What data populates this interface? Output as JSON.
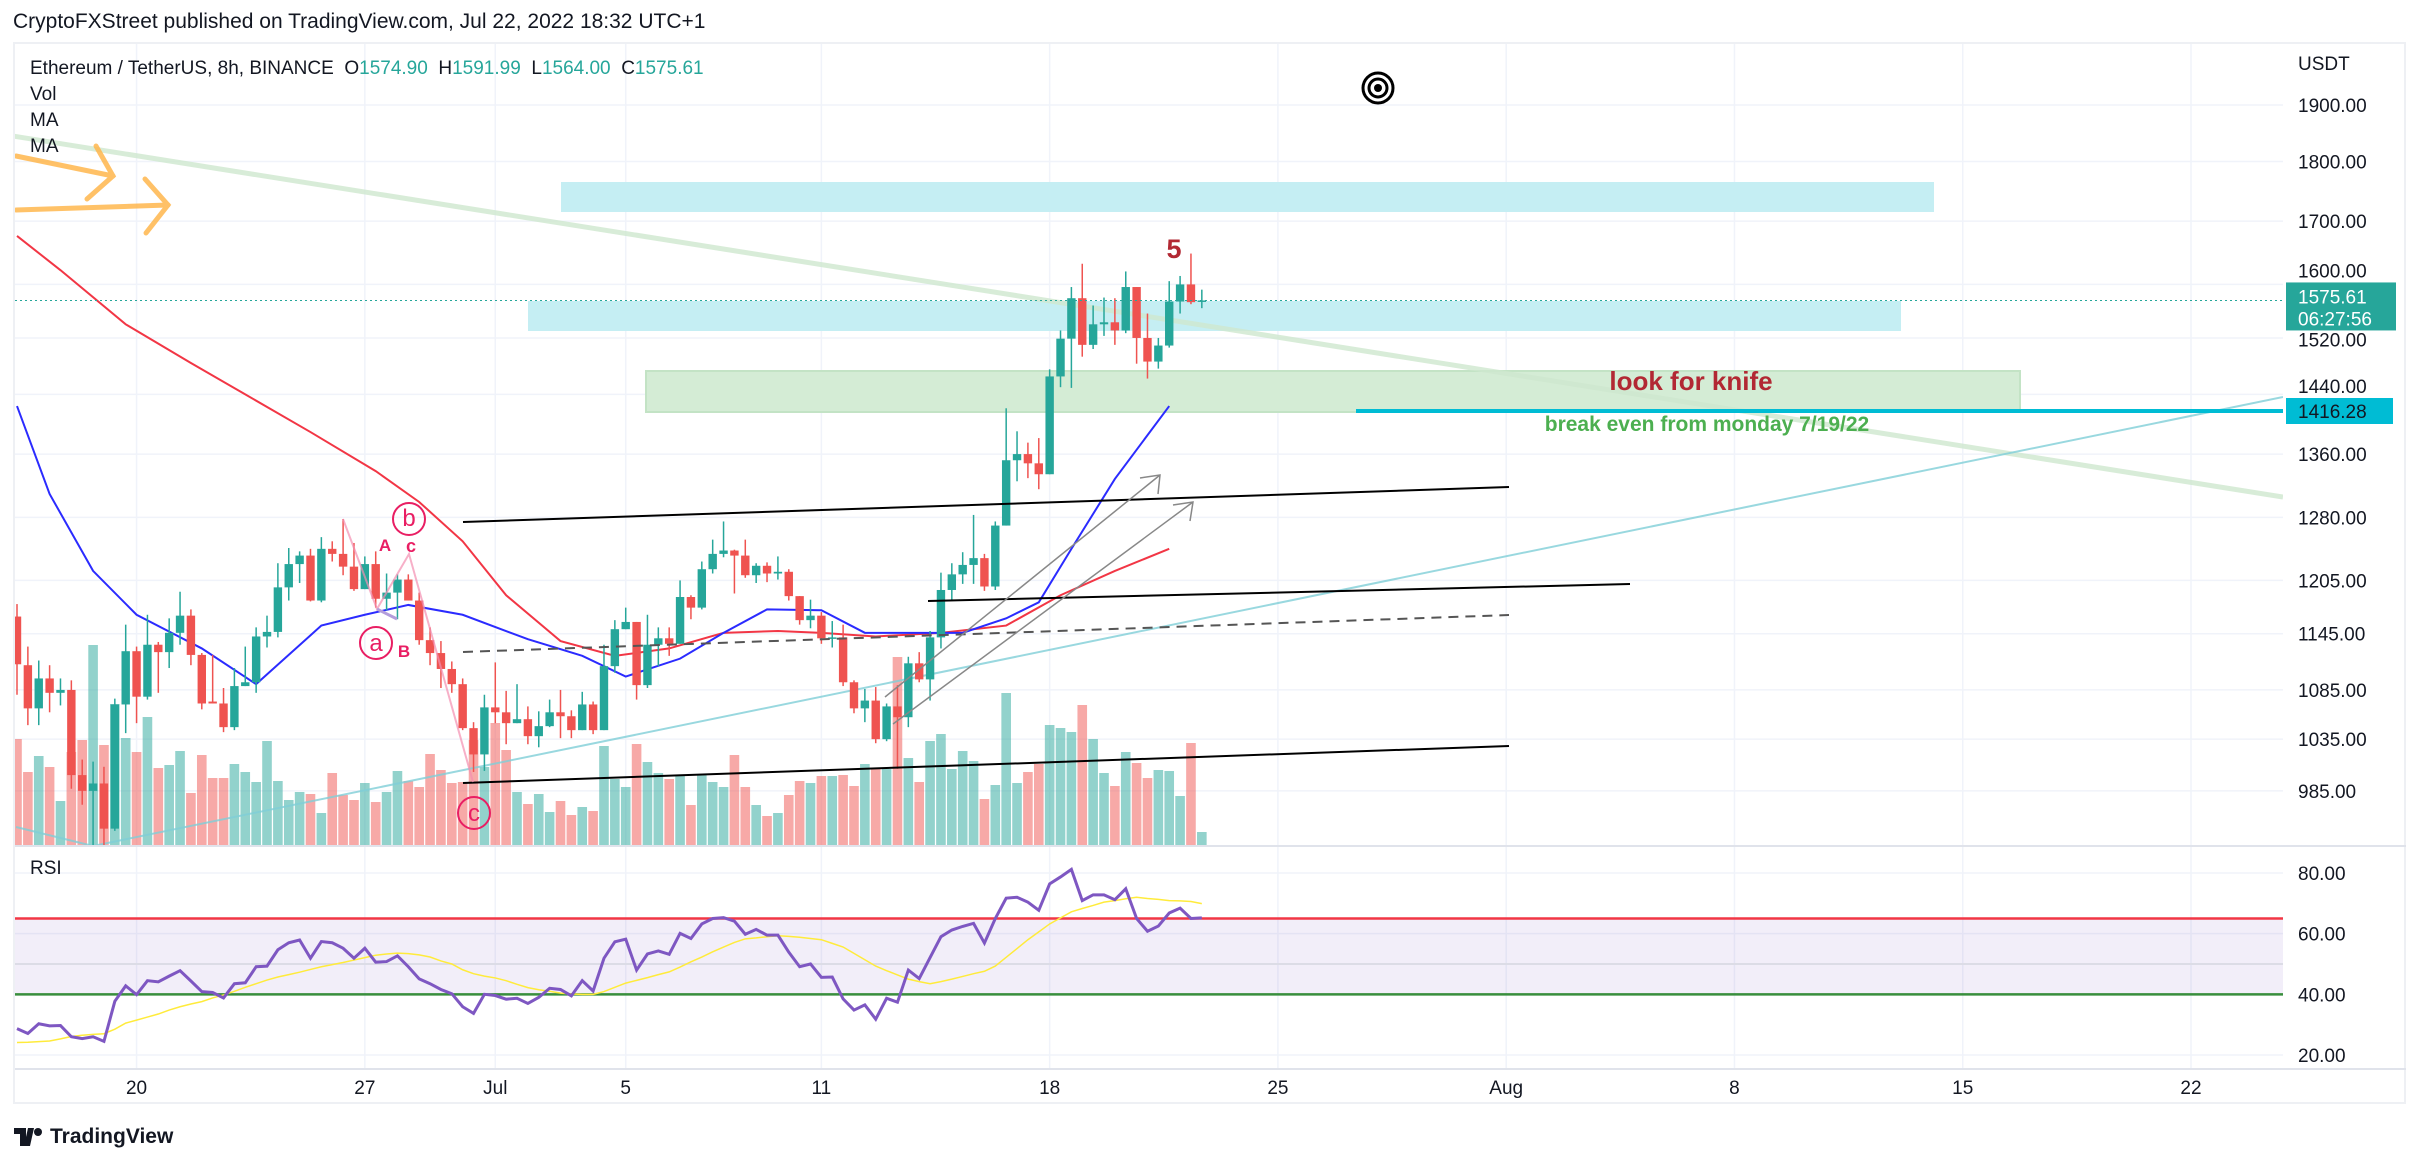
{
  "header": {
    "published": "CryptoFXStreet published on TradingView.com, Jul 22, 2022 18:32 UTC+1"
  },
  "legend": {
    "symbol": "Ethereum / TetherUS, 8h, BINANCE",
    "o_label": "O",
    "o": "1574.90",
    "h_label": "H",
    "h": "1591.99",
    "l_label": "L",
    "l": "1564.00",
    "c_label": "C",
    "c": "1575.61",
    "vol": "Vol",
    "ma1": "MA",
    "ma2": "MA",
    "rsi": "RSI"
  },
  "price_axis": {
    "unit": "USDT",
    "scale": "log",
    "ticks": [
      "1900.00",
      "1800.00",
      "1700.00",
      "1600.00",
      "1520.00",
      "1440.00",
      "1360.00",
      "1280.00",
      "1205.00",
      "1145.00",
      "1085.00",
      "1035.00",
      "985.00"
    ],
    "last_price": "1575.61",
    "countdown": "06:27:56",
    "level_tag": "1416.28"
  },
  "rsi_axis": {
    "ticks": [
      "80.00",
      "60.00",
      "40.00",
      "20.00"
    ],
    "upper_band": 65,
    "lower_band": 40,
    "middle": 50
  },
  "time_axis": {
    "ticks": [
      {
        "label": "20",
        "date": "2022-06-20"
      },
      {
        "label": "27",
        "date": "2022-06-27"
      },
      {
        "label": "Jul",
        "date": "2022-07-01"
      },
      {
        "label": "5",
        "date": "2022-07-05"
      },
      {
        "label": "11",
        "date": "2022-07-11"
      },
      {
        "label": "18",
        "date": "2022-07-18"
      },
      {
        "label": "25",
        "date": "2022-07-25"
      },
      {
        "label": "Aug",
        "date": "2022-08-01"
      },
      {
        "label": "8",
        "date": "2022-08-08"
      },
      {
        "label": "15",
        "date": "2022-08-15"
      },
      {
        "label": "22",
        "date": "2022-08-22"
      }
    ]
  },
  "annotations": {
    "wave5": "5",
    "look_for_knife": "look for knife",
    "break_even": "break even from monday 7/19/22",
    "wave_b_circled": "b",
    "wave_c_small": "c",
    "wave_A": "A",
    "wave_a_circled": "a",
    "wave_B": "B",
    "wave_c_circled": "c"
  },
  "colors": {
    "up": "#26a69a",
    "down": "#ef5350",
    "ma_fast": "#2b2bff",
    "ma_slow": "#f23645",
    "rsi": "#7e57c2",
    "rsi_ma": "#ffeb3b",
    "level": "#00bcd4",
    "zone_blue": "#c5eef3",
    "zone_green": "#d4ecd5"
  },
  "branding": {
    "logo": "TradingView"
  },
  "chart_data": {
    "type": "candlestick",
    "symbol": "Ethereum / TetherUS",
    "interval": "8h",
    "first_candle": "2022-06-16T08:00",
    "ylim": [
      985,
      1900
    ],
    "columns": [
      "open",
      "high",
      "low",
      "close"
    ],
    "ohlc": [
      [
        1164,
        1178,
        1080,
        1112
      ],
      [
        1111,
        1131,
        1049,
        1066
      ],
      [
        1066,
        1116,
        1049,
        1097
      ],
      [
        1097,
        1111,
        1062,
        1082
      ],
      [
        1082,
        1097,
        1069,
        1085
      ],
      [
        1085,
        1095,
        987,
        1000
      ],
      [
        1000,
        1015,
        972,
        985
      ],
      [
        985,
        1013,
        935,
        992
      ],
      [
        992,
        1008,
        935,
        950
      ],
      [
        950,
        1076,
        948,
        1070
      ],
      [
        1070,
        1155,
        1041,
        1126
      ],
      [
        1126,
        1131,
        1051,
        1078
      ],
      [
        1078,
        1166,
        1075,
        1133
      ],
      [
        1133,
        1136,
        1082,
        1125
      ],
      [
        1125,
        1162,
        1108,
        1146
      ],
      [
        1146,
        1192,
        1133,
        1165
      ],
      [
        1165,
        1172,
        1111,
        1122
      ],
      [
        1122,
        1124,
        1065,
        1071
      ],
      [
        1073,
        1122,
        1071,
        1071
      ],
      [
        1071,
        1087,
        1042,
        1047
      ],
      [
        1047,
        1108,
        1044,
        1089
      ],
      [
        1089,
        1131,
        1089,
        1093
      ],
      [
        1093,
        1152,
        1082,
        1142
      ],
      [
        1142,
        1165,
        1130,
        1147
      ],
      [
        1147,
        1225,
        1141,
        1197
      ],
      [
        1197,
        1243,
        1182,
        1224
      ],
      [
        1224,
        1239,
        1202,
        1234
      ],
      [
        1234,
        1242,
        1181,
        1182
      ],
      [
        1182,
        1256,
        1180,
        1242
      ],
      [
        1242,
        1251,
        1227,
        1236
      ],
      [
        1236,
        1278,
        1211,
        1221
      ],
      [
        1221,
        1249,
        1193,
        1195
      ],
      [
        1195,
        1233,
        1195,
        1224
      ],
      [
        1224,
        1239,
        1174,
        1184
      ],
      [
        1184,
        1213,
        1171,
        1191
      ],
      [
        1191,
        1212,
        1161,
        1206
      ],
      [
        1206,
        1212,
        1182,
        1182
      ],
      [
        1182,
        1191,
        1133,
        1138
      ],
      [
        1138,
        1152,
        1111,
        1124
      ],
      [
        1124,
        1137,
        1087,
        1107
      ],
      [
        1107,
        1115,
        1082,
        1091
      ],
      [
        1091,
        1097,
        1044,
        1046
      ],
      [
        1046,
        1052,
        1003,
        1020
      ],
      [
        1020,
        1080,
        1004,
        1067
      ],
      [
        1067,
        1114,
        1051,
        1062
      ],
      [
        1062,
        1084,
        1030,
        1051
      ],
      [
        1051,
        1091,
        1051,
        1055
      ],
      [
        1055,
        1068,
        1030,
        1038
      ],
      [
        1038,
        1063,
        1027,
        1048
      ],
      [
        1048,
        1075,
        1047,
        1062
      ],
      [
        1062,
        1085,
        1036,
        1058
      ],
      [
        1058,
        1064,
        1036,
        1044
      ],
      [
        1044,
        1083,
        1044,
        1070
      ],
      [
        1070,
        1073,
        1040,
        1044
      ],
      [
        1044,
        1133,
        1044,
        1110
      ],
      [
        1110,
        1160,
        1103,
        1150
      ],
      [
        1150,
        1174,
        1150,
        1158
      ],
      [
        1158,
        1158,
        1075,
        1090
      ],
      [
        1090,
        1166,
        1087,
        1133
      ],
      [
        1133,
        1152,
        1110,
        1140
      ],
      [
        1140,
        1152,
        1121,
        1134
      ],
      [
        1134,
        1205,
        1134,
        1186
      ],
      [
        1186,
        1188,
        1161,
        1174
      ],
      [
        1174,
        1227,
        1172,
        1218
      ],
      [
        1218,
        1253,
        1213,
        1236
      ],
      [
        1236,
        1275,
        1232,
        1240
      ],
      [
        1240,
        1241,
        1190,
        1234
      ],
      [
        1234,
        1253,
        1208,
        1211
      ],
      [
        1211,
        1225,
        1202,
        1222
      ],
      [
        1222,
        1226,
        1203,
        1213
      ],
      [
        1213,
        1233,
        1206,
        1215
      ],
      [
        1215,
        1218,
        1182,
        1187
      ],
      [
        1187,
        1187,
        1155,
        1160
      ],
      [
        1160,
        1183,
        1151,
        1165
      ],
      [
        1165,
        1169,
        1134,
        1140
      ],
      [
        1140,
        1159,
        1130,
        1141
      ],
      [
        1141,
        1155,
        1089,
        1093
      ],
      [
        1093,
        1095,
        1061,
        1066
      ],
      [
        1066,
        1086,
        1052,
        1074
      ],
      [
        1074,
        1088,
        1031,
        1035
      ],
      [
        1035,
        1071,
        1033,
        1068
      ],
      [
        1068,
        1090,
        1006,
        1057
      ],
      [
        1057,
        1120,
        1047,
        1113
      ],
      [
        1113,
        1125,
        1093,
        1096
      ],
      [
        1096,
        1148,
        1074,
        1141
      ],
      [
        1141,
        1214,
        1129,
        1194
      ],
      [
        1194,
        1225,
        1183,
        1212
      ],
      [
        1212,
        1238,
        1201,
        1223
      ],
      [
        1223,
        1283,
        1201,
        1231
      ],
      [
        1231,
        1236,
        1193,
        1198
      ],
      [
        1198,
        1275,
        1194,
        1270
      ],
      [
        1270,
        1421,
        1270,
        1352
      ],
      [
        1352,
        1390,
        1325,
        1360
      ],
      [
        1360,
        1375,
        1329,
        1348
      ],
      [
        1348,
        1381,
        1315,
        1334
      ],
      [
        1334,
        1475,
        1334,
        1465
      ],
      [
        1465,
        1531,
        1450,
        1519
      ],
      [
        1519,
        1596,
        1449,
        1579
      ],
      [
        1579,
        1632,
        1493,
        1510
      ],
      [
        1510,
        1568,
        1504,
        1540
      ],
      [
        1540,
        1580,
        1523,
        1543
      ],
      [
        1543,
        1579,
        1510,
        1531
      ],
      [
        1531,
        1620,
        1527,
        1596
      ],
      [
        1596,
        1596,
        1483,
        1520
      ],
      [
        1520,
        1556,
        1462,
        1486
      ],
      [
        1486,
        1520,
        1476,
        1509
      ],
      [
        1509,
        1605,
        1506,
        1574
      ],
      [
        1574,
        1613,
        1556,
        1600
      ],
      [
        1600,
        1648,
        1570,
        1573
      ],
      [
        1574.9,
        1591.99,
        1564.0,
        1575.61
      ]
    ],
    "volume_relative": [
      106,
      73,
      89,
      78,
      44,
      93,
      105,
      200,
      100,
      141,
      107,
      93,
      128,
      77,
      80,
      94,
      52,
      90,
      67,
      67,
      81,
      73,
      63,
      104,
      64,
      45,
      53,
      51,
      32,
      72,
      50,
      45,
      62,
      43,
      53,
      74,
      64,
      58,
      91,
      75,
      62,
      63,
      105,
      78,
      122,
      95,
      53,
      41,
      51,
      33,
      44,
      30,
      38,
      34,
      99,
      66,
      58,
      101,
      83,
      72,
      66,
      70,
      40,
      71,
      63,
      58,
      90,
      58,
      40,
      29,
      32,
      50,
      64,
      62,
      69,
      69,
      70,
      59,
      81,
      77,
      76,
      188,
      87,
      63,
      104,
      111,
      76,
      94,
      84,
      46,
      60,
      152,
      62,
      73,
      81,
      120,
      117,
      113,
      140,
      106,
      72,
      59,
      93,
      82,
      67,
      75,
      74,
      49,
      102,
      13
    ],
    "ma_fast": [
      [
        "2022-06-16T08:00",
        1424
      ],
      [
        "2022-06-17T08:00",
        1309
      ],
      [
        "2022-06-18T16:00",
        1216
      ],
      [
        "2022-06-20T00:00",
        1166
      ],
      [
        "2022-06-22T00:00",
        1129
      ],
      [
        "2022-06-23T16:00",
        1091
      ],
      [
        "2022-06-25T16:00",
        1154
      ],
      [
        "2022-06-27T00:00",
        1166
      ],
      [
        "2022-06-28T08:00",
        1177
      ],
      [
        "2022-06-30T00:00",
        1166
      ],
      [
        "2022-07-02T00:00",
        1139
      ],
      [
        "2022-07-03T16:00",
        1121
      ],
      [
        "2022-07-05T00:00",
        1099
      ],
      [
        "2022-07-06T16:00",
        1118
      ],
      [
        "2022-07-08T00:00",
        1146
      ],
      [
        "2022-07-09T08:00",
        1172
      ],
      [
        "2022-07-11T00:00",
        1171
      ],
      [
        "2022-07-12T08:00",
        1146
      ],
      [
        "2022-07-13T16:00",
        1146
      ],
      [
        "2022-07-15T08:00",
        1146
      ],
      [
        "2022-07-16T16:00",
        1162
      ],
      [
        "2022-07-17T16:00",
        1180
      ],
      [
        "2022-07-18T16:00",
        1242
      ],
      [
        "2022-07-20T00:00",
        1328
      ],
      [
        "2022-07-21T16:00",
        1424
      ]
    ],
    "ma_slow": [
      [
        "2022-06-16T08:00",
        1676
      ],
      [
        "2022-06-17T16:00",
        1622
      ],
      [
        "2022-06-19T16:00",
        1540
      ],
      [
        "2022-06-21T16:00",
        1484
      ],
      [
        "2022-06-23T08:00",
        1440
      ],
      [
        "2022-06-25T08:00",
        1389
      ],
      [
        "2022-06-27T08:00",
        1338
      ],
      [
        "2022-06-28T16:00",
        1299
      ],
      [
        "2022-06-30T00:00",
        1251
      ],
      [
        "2022-07-01T08:00",
        1188
      ],
      [
        "2022-07-03T00:00",
        1137
      ],
      [
        "2022-07-04T16:00",
        1121
      ],
      [
        "2022-07-06T08:00",
        1129
      ],
      [
        "2022-07-08T00:00",
        1146
      ],
      [
        "2022-07-09T16:00",
        1148
      ],
      [
        "2022-07-11T00:00",
        1146
      ],
      [
        "2022-07-12T16:00",
        1142
      ],
      [
        "2022-07-14T16:00",
        1146
      ],
      [
        "2022-07-16T16:00",
        1154
      ],
      [
        "2022-07-18T08:00",
        1188
      ],
      [
        "2022-07-20T00:00",
        1216
      ],
      [
        "2022-07-21T16:00",
        1242
      ]
    ],
    "rsi": [
      28.7,
      27.1,
      30.3,
      29.6,
      29.7,
      26.0,
      25.4,
      26.0,
      24.5,
      37.7,
      42.8,
      39.9,
      44.5,
      44.1,
      46.0,
      47.8,
      44.4,
      40.9,
      40.6,
      38.8,
      43.5,
      43.8,
      49.1,
      49.3,
      54.7,
      57.0,
      57.9,
      51.9,
      57.4,
      57.0,
      55.2,
      51.9,
      55.2,
      50.6,
      50.8,
      52.7,
      49.1,
      45.1,
      43.5,
      41.6,
      40.2,
      35.9,
      33.7,
      40.0,
      39.6,
      38.4,
      38.7,
      37.0,
      39.0,
      42.0,
      41.6,
      39.5,
      44.5,
      41.1,
      51.9,
      57.3,
      58.2,
      48.0,
      53.3,
      54.3,
      53.2,
      60.1,
      58.4,
      63.2,
      65.0,
      65.3,
      64.1,
      59.8,
      61.4,
      59.5,
      59.5,
      53.9,
      49.1,
      50.0,
      45.6,
      45.7,
      38.5,
      34.8,
      36.5,
      31.8,
      38.7,
      37.4,
      48.0,
      45.2,
      52.1,
      59.0,
      61.2,
      62.4,
      63.4,
      56.9,
      65.0,
      71.7,
      72.0,
      70.4,
      67.7,
      76.4,
      78.7,
      81.2,
      70.9,
      72.8,
      72.8,
      71.2,
      74.8,
      65.0,
      60.8,
      62.5,
      66.8,
      68.4,
      65.0,
      65.2
    ],
    "rsi_ma": [
      24.1,
      24.2,
      24.4,
      24.6,
      25.3,
      26.1,
      26.5,
      26.8,
      27.0,
      28.5,
      30.5,
      31.5,
      32.5,
      33.5,
      34.8,
      35.9,
      36.8,
      37.6,
      38.8,
      39.8,
      41.0,
      42.3,
      43.5,
      44.7,
      45.7,
      46.5,
      47.3,
      48.2,
      49.1,
      49.8,
      50.5,
      51.3,
      52.1,
      52.9,
      53.3,
      53.6,
      53.4,
      53.0,
      52.3,
      51.0,
      50.0,
      48.1,
      46.8,
      46.0,
      45.4,
      44.5,
      43.3,
      42.2,
      41.5,
      41.0,
      40.4,
      40.1,
      40.0,
      40.0,
      40.9,
      42.3,
      43.7,
      44.6,
      45.5,
      46.5,
      47.4,
      49.0,
      50.7,
      52.3,
      54.0,
      55.6,
      57.1,
      58.3,
      58.6,
      59.0,
      59.3,
      59.1,
      58.8,
      58.4,
      58.0,
      56.8,
      55.6,
      53.5,
      51.4,
      49.3,
      47.8,
      46.4,
      45.0,
      44.2,
      43.5,
      44.2,
      45.0,
      45.9,
      46.8,
      47.6,
      49.3,
      52.2,
      55.1,
      58.0,
      60.6,
      63.2,
      65.2,
      67.2,
      68.3,
      69.3,
      70.4,
      70.9,
      71.5,
      72.0,
      71.6,
      71.3,
      70.9,
      70.8,
      70.6,
      69.9
    ]
  }
}
